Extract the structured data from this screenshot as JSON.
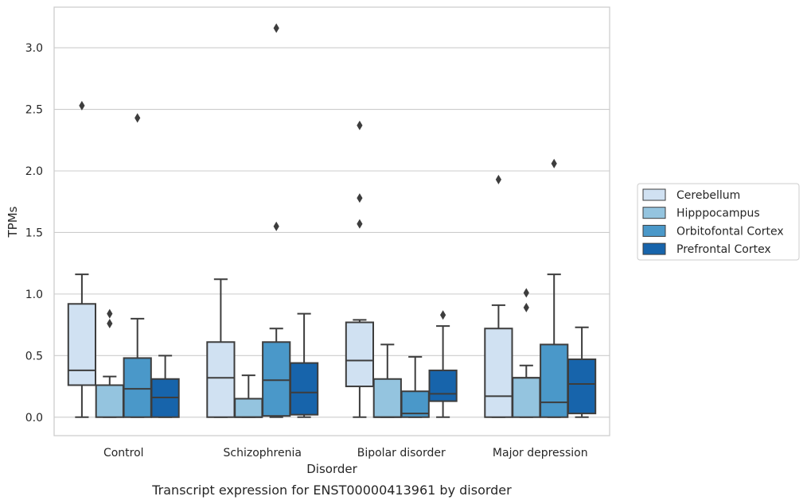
{
  "chart_data": {
    "type": "boxplot",
    "caption": "Transcript expression for ENST00000413961 by disorder",
    "xlabel": "Disorder",
    "ylabel": "TPMs",
    "ylim": [
      -0.15,
      3.33
    ],
    "yticks": [
      0.0,
      0.5,
      1.0,
      1.5,
      2.0,
      2.5,
      3.0
    ],
    "ytick_labels": [
      "0.0",
      "0.5",
      "1.0",
      "1.5",
      "2.0",
      "2.5",
      "3.0"
    ],
    "grid": "horizontal",
    "legend_position": "outside-right",
    "categories": [
      "Control",
      "Schizophrenia",
      "Bipolar disorder",
      "Major depression"
    ],
    "series": [
      {
        "name": "Cerebellum",
        "color": "#d0e1f2",
        "boxes": [
          {
            "whislo": 0.0,
            "q1": 0.26,
            "med": 0.38,
            "q3": 0.92,
            "whishi": 1.16,
            "fliers": [
              2.53
            ]
          },
          {
            "whislo": 0.0,
            "q1": 0.0,
            "med": 0.32,
            "q3": 0.61,
            "whishi": 1.12,
            "fliers": []
          },
          {
            "whislo": 0.0,
            "q1": 0.25,
            "med": 0.46,
            "q3": 0.77,
            "whishi": 0.79,
            "fliers": [
              1.57,
              1.78,
              2.37
            ]
          },
          {
            "whislo": 0.0,
            "q1": 0.0,
            "med": 0.17,
            "q3": 0.72,
            "whishi": 0.91,
            "fliers": [
              1.93
            ]
          }
        ]
      },
      {
        "name": "Hipppocampus",
        "color": "#94c4df",
        "boxes": [
          {
            "whislo": 0.0,
            "q1": 0.0,
            "med": 0.26,
            "q3": 0.26,
            "whishi": 0.33,
            "fliers": [
              0.76,
              0.84
            ]
          },
          {
            "whislo": 0.0,
            "q1": 0.0,
            "med": 0.0,
            "q3": 0.15,
            "whishi": 0.34,
            "fliers": []
          },
          {
            "whislo": 0.0,
            "q1": 0.0,
            "med": 0.0,
            "q3": 0.31,
            "whishi": 0.59,
            "fliers": []
          },
          {
            "whislo": 0.0,
            "q1": 0.0,
            "med": 0.32,
            "q3": 0.32,
            "whishi": 0.42,
            "fliers": [
              0.89,
              1.01
            ]
          }
        ]
      },
      {
        "name": "Orbitofontal Cortex",
        "color": "#4a98c9",
        "boxes": [
          {
            "whislo": 0.0,
            "q1": 0.0,
            "med": 0.23,
            "q3": 0.48,
            "whishi": 0.8,
            "fliers": [
              2.43
            ]
          },
          {
            "whislo": 0.0,
            "q1": 0.01,
            "med": 0.3,
            "q3": 0.61,
            "whishi": 0.72,
            "fliers": [
              1.55,
              3.16
            ]
          },
          {
            "whislo": 0.0,
            "q1": 0.0,
            "med": 0.03,
            "q3": 0.21,
            "whishi": 0.49,
            "fliers": []
          },
          {
            "whislo": 0.0,
            "q1": 0.0,
            "med": 0.12,
            "q3": 0.59,
            "whishi": 1.16,
            "fliers": [
              2.06
            ]
          }
        ]
      },
      {
        "name": "Prefrontal Cortex",
        "color": "#1764ab",
        "boxes": [
          {
            "whislo": 0.0,
            "q1": 0.0,
            "med": 0.16,
            "q3": 0.31,
            "whishi": 0.5,
            "fliers": []
          },
          {
            "whislo": 0.0,
            "q1": 0.02,
            "med": 0.2,
            "q3": 0.44,
            "whishi": 0.84,
            "fliers": []
          },
          {
            "whislo": 0.0,
            "q1": 0.13,
            "med": 0.19,
            "q3": 0.38,
            "whishi": 0.74,
            "fliers": [
              0.83
            ]
          },
          {
            "whislo": 0.0,
            "q1": 0.03,
            "med": 0.27,
            "q3": 0.47,
            "whishi": 0.73,
            "fliers": []
          }
        ]
      }
    ]
  }
}
